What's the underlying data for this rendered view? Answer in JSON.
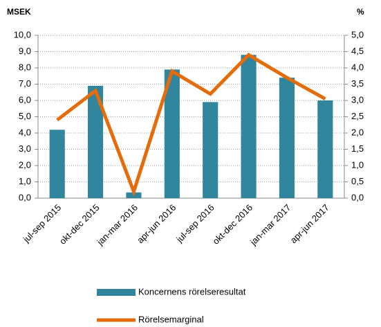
{
  "chart_data": {
    "type": "bar",
    "ylabel": "MSEK",
    "y2label": "%",
    "categories": [
      "jul-sep 2015",
      "okt-dec 2015",
      "jan-mar 2016",
      "apr-jun 2016",
      "jul-sep 2016",
      "okt-dec 2016",
      "jan-mar 2017",
      "apr-jun 2017"
    ],
    "series": [
      {
        "name": "Koncernens rörelseresultat",
        "type": "bar",
        "color": "#31859c",
        "values": [
          4.2,
          6.9,
          0.35,
          7.9,
          5.9,
          8.8,
          7.4,
          6.0
        ]
      },
      {
        "name": "Rörelsemarginal",
        "type": "line",
        "axis": "y2",
        "color": "#e46c0a",
        "values": [
          2.4,
          3.3,
          0.2,
          3.9,
          3.2,
          4.4,
          3.7,
          3.05
        ]
      }
    ],
    "ylim": [
      0,
      10
    ],
    "yticks": [
      {
        "value": 0,
        "label": "0,0"
      },
      {
        "value": 1,
        "label": "1,0"
      },
      {
        "value": 2,
        "label": "2,0"
      },
      {
        "value": 3,
        "label": "3,0"
      },
      {
        "value": 4,
        "label": "4,0"
      },
      {
        "value": 5,
        "label": "5,0"
      },
      {
        "value": 6,
        "label": "6,0"
      },
      {
        "value": 7,
        "label": "7,0"
      },
      {
        "value": 8,
        "label": "8,0"
      },
      {
        "value": 9,
        "label": "9,0"
      },
      {
        "value": 10,
        "label": "10,0"
      }
    ],
    "y2lim": [
      0,
      5
    ],
    "y2ticks": [
      {
        "value": 0,
        "label": "0,0"
      },
      {
        "value": 0.5,
        "label": "0,5"
      },
      {
        "value": 1,
        "label": "1,0"
      },
      {
        "value": 1.5,
        "label": "1,5"
      },
      {
        "value": 2,
        "label": "2,0"
      },
      {
        "value": 2.5,
        "label": "2,5"
      },
      {
        "value": 3,
        "label": "3,0"
      },
      {
        "value": 3.5,
        "label": "3,5"
      },
      {
        "value": 4,
        "label": "4,0"
      },
      {
        "value": 4.5,
        "label": "4,5"
      },
      {
        "value": 5,
        "label": "5,0"
      }
    ],
    "grid": true,
    "legend": "bottom"
  }
}
